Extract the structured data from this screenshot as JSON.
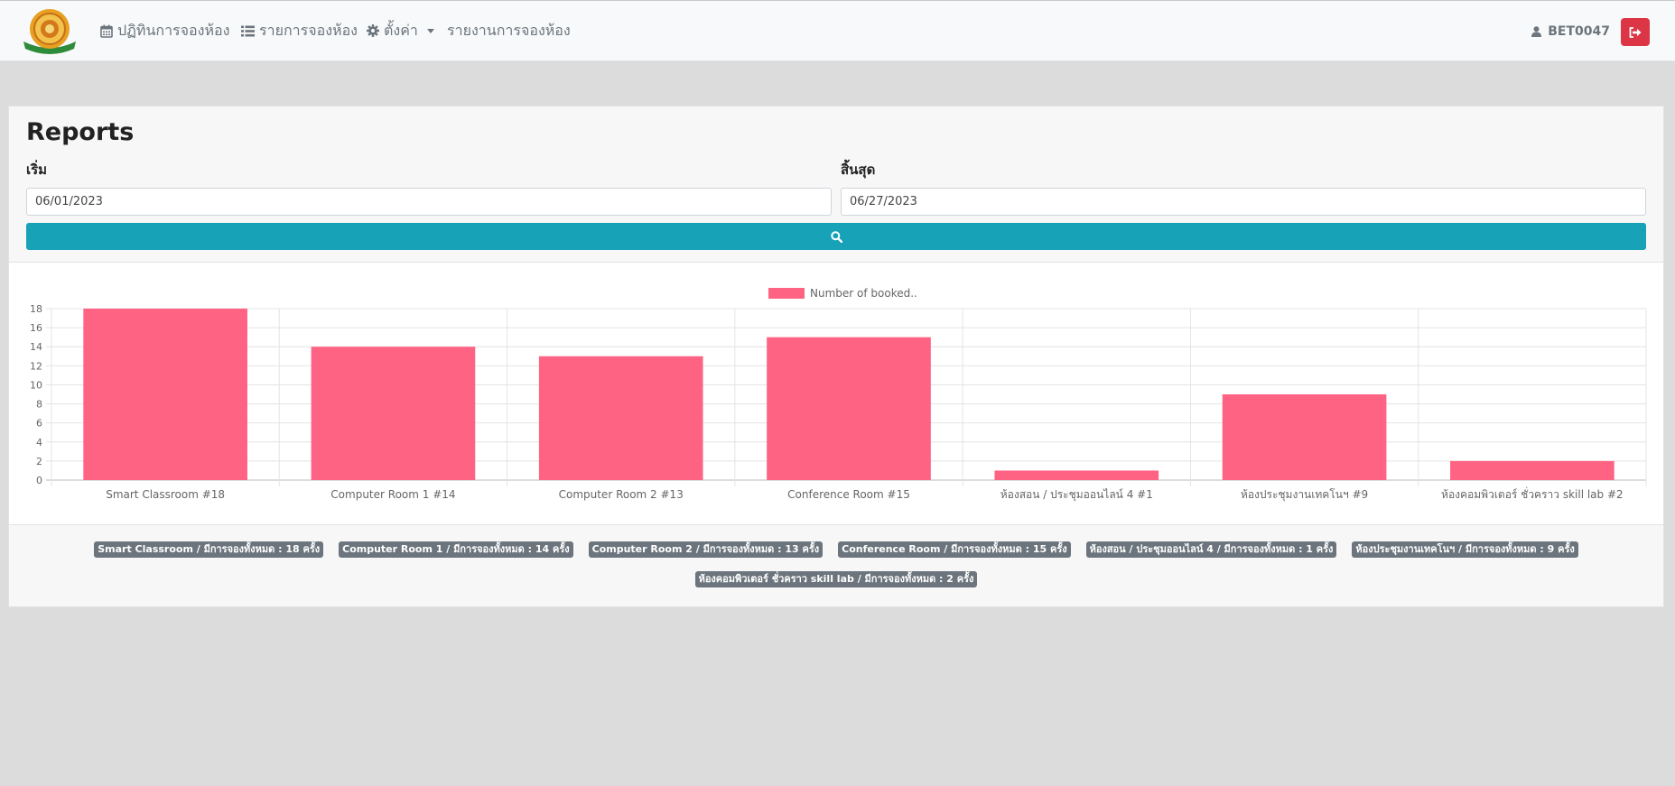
{
  "nav": {
    "logo_label": "",
    "calendar": "ปฏิทินการจองห้อง",
    "bookings": "รายการจองห้อง",
    "settings": "ตั้งค่า",
    "report": "รายงานการจองห้อง",
    "user": "BET0047",
    "icons": {
      "calendar": "calendar-icon",
      "bookings": "list-icon",
      "settings": "gear-icon",
      "user": "user-icon",
      "logout": "sign-out-icon"
    }
  },
  "page": {
    "title": "Reports",
    "start_label": "เริ่ม",
    "end_label": "สิ้นสุด",
    "start_value": "06/01/2023",
    "end_value": "06/27/2023",
    "search_icon": "search-icon"
  },
  "colors": {
    "bar": "#ff6384",
    "search_button": "#17a2b8",
    "logout_button": "#dc3545",
    "badge": "#6c757d"
  },
  "chart_data": {
    "type": "bar",
    "categories": [
      "Smart Classroom #18",
      "Computer Room 1 #14",
      "Computer Room 2 #13",
      "Conference Room #15",
      "ห้องสอน / ประชุมออนไลน์ 4 #1",
      "ห้องประชุมงานเทคโนฯ #9",
      "ห้องคอมพิวเตอร์ ชั่วคราว skill lab #2"
    ],
    "series": [
      {
        "name": "Number of booked..",
        "values": [
          18,
          14,
          13,
          15,
          1,
          9,
          2
        ]
      }
    ],
    "ylim": [
      0,
      18
    ],
    "yticks": [
      "0",
      "2",
      "4",
      "6",
      "8",
      "10",
      "12",
      "14",
      "16",
      "18"
    ],
    "legend_position": "top-center",
    "grid": true
  },
  "summary": [
    "Smart Classroom / มีการจองทั้งหมด : 18 ครั้ง",
    "Computer Room 1 / มีการจองทั้งหมด : 14 ครั้ง",
    "Computer Room 2 / มีการจองทั้งหมด : 13 ครั้ง",
    "Conference Room / มีการจองทั้งหมด : 15 ครั้ง",
    "ห้องสอน / ประชุมออนไลน์ 4 / มีการจองทั้งหมด : 1 ครั้ง",
    "ห้องประชุมงานเทคโนฯ / มีการจองทั้งหมด : 9 ครั้ง",
    "ห้องคอมพิวเตอร์ ชั่วคราว skill lab / มีการจองทั้งหมด : 2 ครั้ง"
  ]
}
